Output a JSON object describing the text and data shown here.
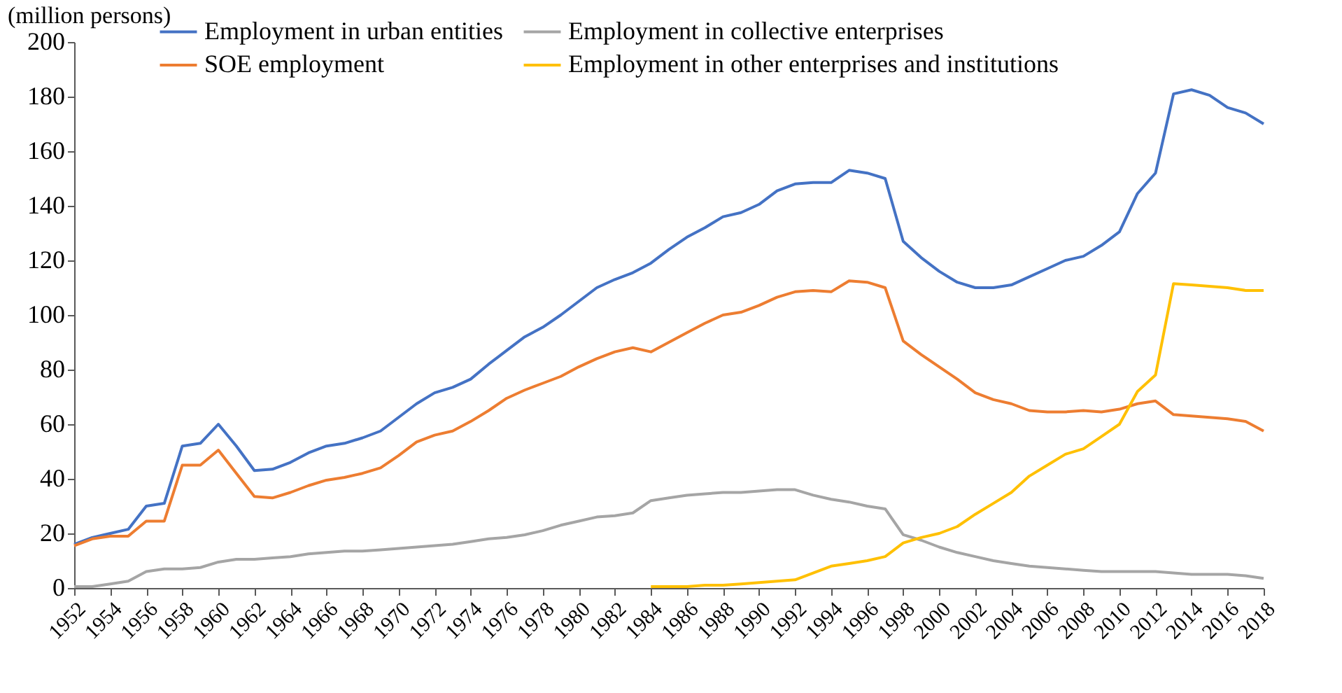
{
  "chart_data": {
    "type": "line",
    "ylabel": "(million persons)",
    "x": [
      1952,
      1953,
      1954,
      1955,
      1956,
      1957,
      1958,
      1959,
      1960,
      1961,
      1962,
      1963,
      1964,
      1965,
      1966,
      1967,
      1968,
      1969,
      1970,
      1971,
      1972,
      1973,
      1974,
      1975,
      1976,
      1977,
      1978,
      1979,
      1980,
      1981,
      1982,
      1983,
      1984,
      1985,
      1986,
      1987,
      1988,
      1989,
      1990,
      1991,
      1992,
      1993,
      1994,
      1995,
      1996,
      1997,
      1998,
      1999,
      2000,
      2001,
      2002,
      2003,
      2004,
      2005,
      2006,
      2007,
      2008,
      2009,
      2010,
      2011,
      2012,
      2013,
      2014,
      2015,
      2016,
      2017,
      2018
    ],
    "xlim": [
      1952,
      2018
    ],
    "xticks": [
      1952,
      1954,
      1956,
      1958,
      1960,
      1962,
      1964,
      1966,
      1968,
      1970,
      1972,
      1974,
      1976,
      1978,
      1980,
      1982,
      1984,
      1986,
      1988,
      1990,
      1992,
      1994,
      1996,
      1998,
      2000,
      2002,
      2004,
      2006,
      2008,
      2010,
      2012,
      2014,
      2016,
      2018
    ],
    "ylim": [
      0,
      200
    ],
    "yticks": [
      0,
      20,
      40,
      60,
      80,
      100,
      120,
      140,
      160,
      180,
      200
    ],
    "grid": false,
    "legend": "top",
    "line_style": "solid",
    "series": [
      {
        "name": "Employment in urban entities",
        "color": "#4472c4",
        "values": [
          16,
          18.5,
          20,
          21.5,
          30,
          31,
          52,
          53,
          60,
          52,
          43,
          43.5,
          46,
          49.5,
          52,
          53,
          55,
          57.5,
          62.5,
          67.5,
          71.5,
          73.5,
          76.5,
          82,
          87,
          92,
          95.5,
          100,
          105,
          110,
          113,
          115.5,
          119,
          124,
          128.5,
          132,
          136,
          137.5,
          140.5,
          145.5,
          148,
          148.5,
          148.5,
          153,
          152,
          150,
          127,
          121,
          116,
          112,
          110,
          110,
          111,
          114,
          117,
          120,
          121.5,
          125.5,
          130.5,
          144.5,
          152,
          181,
          182.5,
          180.5,
          176,
          174,
          170
        ]
      },
      {
        "name": "SOE employment",
        "color": "#ed7d31",
        "values": [
          15.5,
          18,
          19,
          19,
          24.5,
          24.5,
          45,
          45,
          50.5,
          42,
          33.5,
          33,
          35,
          37.5,
          39.5,
          40.5,
          42,
          44,
          48.5,
          53.5,
          56,
          57.5,
          61,
          65,
          69.5,
          72.5,
          75,
          77.5,
          81,
          84,
          86.5,
          88,
          86.5,
          90,
          93.5,
          97,
          100,
          101,
          103.5,
          106.5,
          108.5,
          109,
          108.5,
          112.5,
          112,
          110,
          90.5,
          85.5,
          81,
          76.5,
          71.5,
          69,
          67.5,
          65,
          64.5,
          64.5,
          65,
          64.5,
          65.5,
          67.5,
          68.5,
          63.5,
          63,
          62.5,
          62,
          61,
          57.5
        ]
      },
      {
        "name": "Employment in collective enterprises",
        "color": "#a5a5a5",
        "values": [
          0.5,
          0.5,
          1.5,
          2.5,
          6,
          7,
          7,
          7.5,
          9.5,
          10.5,
          10.5,
          11,
          11.5,
          12.5,
          13,
          13.5,
          13.5,
          14,
          14.5,
          15,
          15.5,
          16,
          17,
          18,
          18.5,
          19.5,
          21,
          23,
          24.5,
          26,
          26.5,
          27.5,
          32,
          33,
          34,
          34.5,
          35,
          35,
          35.5,
          36,
          36,
          34,
          32.5,
          31.5,
          30,
          29,
          19.5,
          17.5,
          15,
          13,
          11.5,
          10,
          9,
          8,
          7.5,
          7,
          6.5,
          6,
          6,
          6,
          6,
          5.5,
          5,
          5,
          5,
          4.5,
          3.5
        ]
      },
      {
        "name": "Employment in other enterprises and institutions",
        "color": "#ffc000",
        "values": [
          null,
          null,
          null,
          null,
          null,
          null,
          null,
          null,
          null,
          null,
          null,
          null,
          null,
          null,
          null,
          null,
          null,
          null,
          null,
          null,
          null,
          null,
          null,
          null,
          null,
          null,
          null,
          null,
          null,
          null,
          null,
          null,
          0.5,
          0.5,
          0.5,
          1,
          1,
          1.5,
          2,
          2.5,
          3,
          5.5,
          8,
          9,
          10,
          11.5,
          16.5,
          18.5,
          20,
          22.5,
          27,
          31,
          35,
          41,
          45,
          49,
          51,
          55.5,
          60,
          72,
          78,
          111.5,
          111,
          110.5,
          110,
          109,
          109
        ]
      }
    ]
  }
}
